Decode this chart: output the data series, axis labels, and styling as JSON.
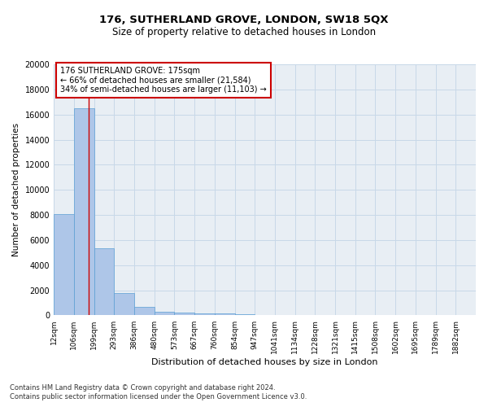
{
  "title_line1": "176, SUTHERLAND GROVE, LONDON, SW18 5QX",
  "title_line2": "Size of property relative to detached houses in London",
  "xlabel": "Distribution of detached houses by size in London",
  "ylabel": "Number of detached properties",
  "bin_labels": [
    "12sqm",
    "106sqm",
    "199sqm",
    "293sqm",
    "386sqm",
    "480sqm",
    "573sqm",
    "667sqm",
    "760sqm",
    "854sqm",
    "947sqm",
    "1041sqm",
    "1134sqm",
    "1228sqm",
    "1321sqm",
    "1415sqm",
    "1508sqm",
    "1602sqm",
    "1695sqm",
    "1789sqm",
    "1882sqm"
  ],
  "bar_heights": [
    8100,
    16500,
    5350,
    1750,
    700,
    320,
    200,
    175,
    155,
    100,
    0,
    0,
    0,
    0,
    0,
    0,
    0,
    0,
    0,
    0,
    0
  ],
  "bar_color": "#aec6e8",
  "bar_edge_color": "#5a9fd4",
  "grid_color": "#c8d8e8",
  "vline_x": 1.72,
  "vline_color": "#cc0000",
  "annotation_text": "176 SUTHERLAND GROVE: 175sqm\n← 66% of detached houses are smaller (21,584)\n34% of semi-detached houses are larger (11,103) →",
  "annotation_box_color": "#ffffff",
  "annotation_box_edge": "#cc0000",
  "ylim": [
    0,
    20000
  ],
  "yticks": [
    0,
    2000,
    4000,
    6000,
    8000,
    10000,
    12000,
    14000,
    16000,
    18000,
    20000
  ],
  "footnote1": "Contains HM Land Registry data © Crown copyright and database right 2024.",
  "footnote2": "Contains public sector information licensed under the Open Government Licence v3.0.",
  "background_color": "#e8eef4",
  "fig_width": 6.0,
  "fig_height": 5.0,
  "dpi": 100
}
